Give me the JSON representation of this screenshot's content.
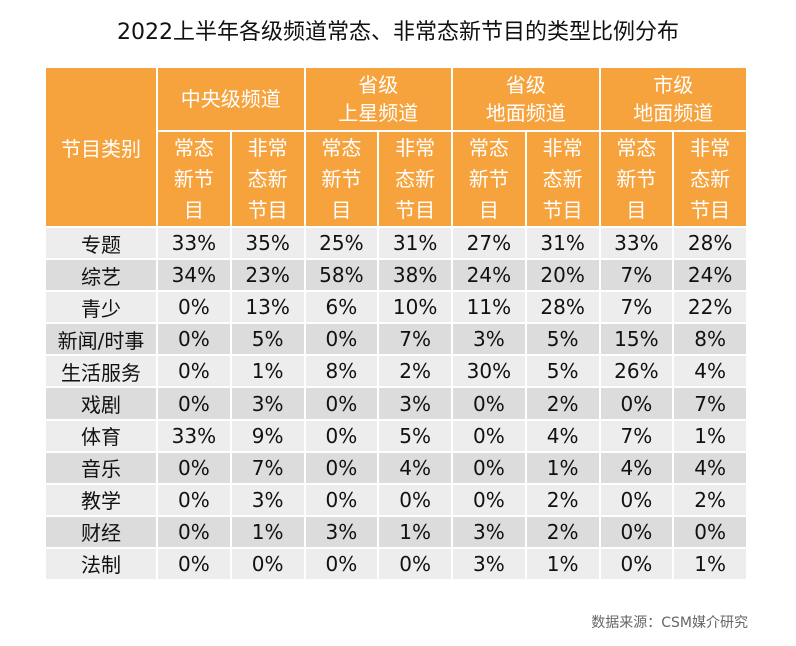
{
  "title": "2022上半年各级频道常态、非常态新节目的类型比例分布",
  "source": "数据来源：CSM媒介研究",
  "chart_data": {
    "type": "table",
    "row_header_label": "节目类别",
    "groups": [
      {
        "name": "中央级频道",
        "lines": [
          "中央级频道"
        ]
      },
      {
        "name": "省级上星频道",
        "lines": [
          "省级",
          "上星频道"
        ]
      },
      {
        "name": "省级地面频道",
        "lines": [
          "省级",
          "地面频道"
        ]
      },
      {
        "name": "市级地面频道",
        "lines": [
          "市级",
          "地面频道"
        ]
      }
    ],
    "subcolumns": [
      {
        "name": "常态新节目",
        "lines": [
          "常态",
          "新节",
          "目"
        ]
      },
      {
        "name": "非常态新节目",
        "lines": [
          "非常",
          "态新",
          "节目"
        ]
      }
    ],
    "rows": [
      {
        "category": "专题",
        "values": [
          "33%",
          "35%",
          "25%",
          "31%",
          "27%",
          "31%",
          "33%",
          "28%"
        ]
      },
      {
        "category": "综艺",
        "values": [
          "34%",
          "23%",
          "58%",
          "38%",
          "24%",
          "20%",
          "7%",
          "24%"
        ]
      },
      {
        "category": "青少",
        "values": [
          "0%",
          "13%",
          "6%",
          "10%",
          "11%",
          "28%",
          "7%",
          "22%"
        ]
      },
      {
        "category": "新闻/时事",
        "values": [
          "0%",
          "5%",
          "0%",
          "7%",
          "3%",
          "5%",
          "15%",
          "8%"
        ]
      },
      {
        "category": "生活服务",
        "values": [
          "0%",
          "1%",
          "8%",
          "2%",
          "30%",
          "5%",
          "26%",
          "4%"
        ]
      },
      {
        "category": "戏剧",
        "values": [
          "0%",
          "3%",
          "0%",
          "3%",
          "0%",
          "2%",
          "0%",
          "7%"
        ]
      },
      {
        "category": "体育",
        "values": [
          "33%",
          "9%",
          "0%",
          "5%",
          "0%",
          "4%",
          "7%",
          "1%"
        ]
      },
      {
        "category": "音乐",
        "values": [
          "0%",
          "7%",
          "0%",
          "4%",
          "0%",
          "1%",
          "4%",
          "4%"
        ]
      },
      {
        "category": "教学",
        "values": [
          "0%",
          "3%",
          "0%",
          "0%",
          "0%",
          "2%",
          "0%",
          "2%"
        ]
      },
      {
        "category": "财经",
        "values": [
          "0%",
          "1%",
          "3%",
          "1%",
          "3%",
          "2%",
          "0%",
          "0%"
        ]
      },
      {
        "category": "法制",
        "values": [
          "0%",
          "0%",
          "0%",
          "0%",
          "3%",
          "1%",
          "0%",
          "1%"
        ]
      }
    ],
    "header_color": "#f6a33d",
    "row_colors": [
      "#ededed",
      "#dcdcdc"
    ]
  }
}
